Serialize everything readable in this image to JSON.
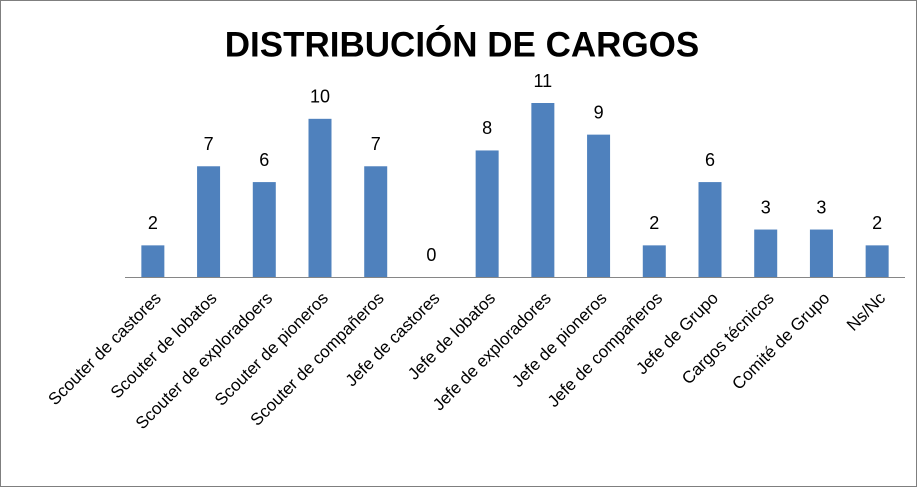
{
  "chart_data": {
    "type": "bar",
    "title": "DISTRIBUCIÓN DE CARGOS",
    "categories": [
      "Scouter de castores",
      "Scouter de lobatos",
      "Scouter de exploradoers",
      "Scouter de pioneros",
      "Scouter de compañeros",
      "Jefe de castores",
      "Jefe de lobatos",
      "Jefe de exploradores",
      "Jefe de pioneros",
      "Jefe de compañeros",
      "Jefe de Grupo",
      "Cargos técnicos",
      "Comité de Grupo",
      "Ns/Nc"
    ],
    "values": [
      2,
      7,
      6,
      10,
      7,
      0,
      8,
      11,
      9,
      2,
      6,
      3,
      3,
      2
    ],
    "color": "#4f81bd"
  }
}
